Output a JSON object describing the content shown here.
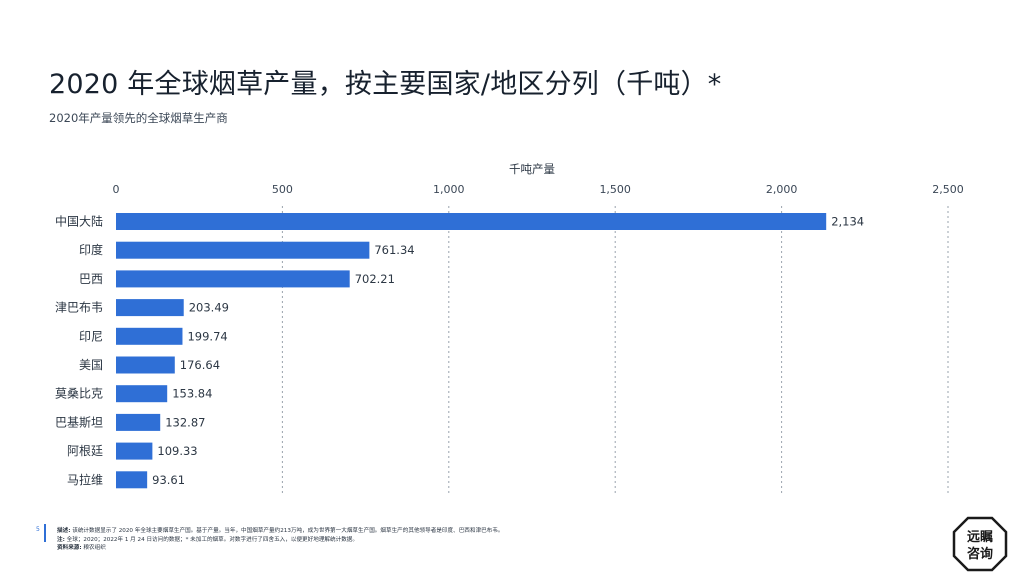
{
  "title": "2020 年全球烟草产量，按主要国家/地区分列（千吨）*",
  "subtitle": "2020年产量领先的全球烟草生产商",
  "chart_data": {
    "type": "bar",
    "orientation": "horizontal",
    "xlabel": "千吨产量",
    "xlim": [
      0,
      2500
    ],
    "xticks": [
      0,
      500,
      1000,
      1500,
      2000,
      2500
    ],
    "xtick_labels": [
      "0",
      "500",
      "1,000",
      "1,500",
      "2,000",
      "2,500"
    ],
    "grid": "vertical dotted",
    "bar_color": "#2f6fd6",
    "categories": [
      "中国大陆",
      "印度",
      "巴西",
      "津巴布韦",
      "印尼",
      "美国",
      "莫桑比克",
      "巴基斯坦",
      "阿根廷",
      "马拉维"
    ],
    "values": [
      2134,
      761.34,
      702.21,
      203.49,
      199.74,
      176.64,
      153.84,
      132.87,
      109.33,
      93.61
    ],
    "value_labels": [
      "2,134",
      "761.34",
      "702.21",
      "203.49",
      "199.74",
      "176.64",
      "153.84",
      "132.87",
      "109.33",
      "93.61"
    ]
  },
  "footer": {
    "page_number": "5",
    "desc_label": "描述:",
    "desc_text": "该统计数据显示了 2020 年全球主要烟草生产国。基于产量。当年，中国烟草产量约213万吨，成为世界第一大烟草生产国。烟草生产的其他领导者是印度、巴西和津巴布韦。",
    "note_label": "注:",
    "note_text": "全球；2020；2022年 1 月 24 日访问的数据；* 未加工的烟草。对数字进行了四舍五入，以便更好地理解统计数据。",
    "source_label": "资料来源:",
    "source_text": "粮农组织"
  },
  "logo": {
    "top": "远瞩",
    "bottom": "咨询"
  }
}
